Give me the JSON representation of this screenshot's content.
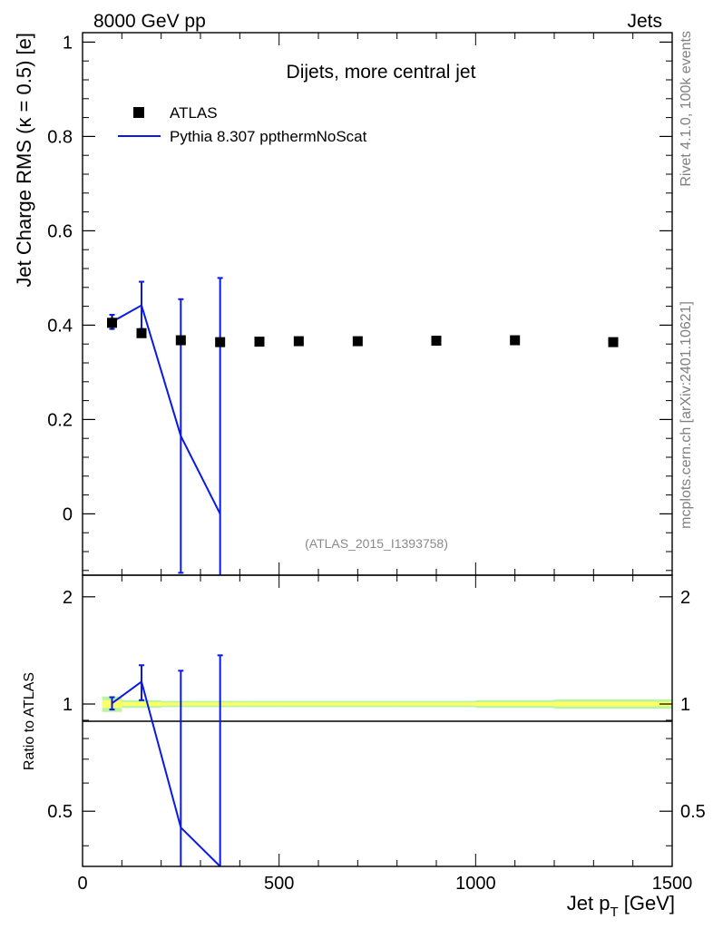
{
  "header": {
    "left": "8000 GeV pp",
    "right": "Jets"
  },
  "side": {
    "rivet": "Rivet 4.1.0,  100k events",
    "mcplots": "mcplots.cern.ch [arXiv:2401.10621]"
  },
  "colors": {
    "data": "#000000",
    "mc": "#0a19e6",
    "band_inner": "#ffff66",
    "band_outer": "#b8f5a0"
  },
  "chart_data": [
    {
      "type": "scatter",
      "title": "Dijets, more central jet",
      "xlabel": "Jet p",
      "xlabel_sub": "T",
      "xlabel_unit": " [GeV]",
      "ylabel": "Jet Charge RMS (κ = 0.5) [e]",
      "xlim": [
        0,
        1500
      ],
      "ylim": [
        -0.13,
        1.02
      ],
      "analysis_id": "(ATLAS_2015_I1393758)",
      "x_ticks": [
        0,
        500,
        1000,
        1500
      ],
      "x_tick_labels": [
        "0",
        "500",
        "1000",
        "1500"
      ],
      "y_ticks": [
        0,
        0.2,
        0.4,
        0.6,
        0.8,
        1
      ],
      "y_tick_labels": [
        "0",
        "0.2",
        "0.4",
        "0.6",
        "0.8",
        "1"
      ],
      "legend": {
        "data_label": "ATLAS",
        "mc_label": "Pythia 8.307 ppthermNoScat",
        "position": "top-left"
      },
      "series": [
        {
          "name": "ATLAS",
          "x": [
            75,
            150,
            250,
            350,
            450,
            550,
            700,
            900,
            1100,
            1350
          ],
          "y": [
            0.405,
            0.383,
            0.368,
            0.364,
            0.365,
            0.366,
            0.366,
            0.367,
            0.368,
            0.364
          ],
          "err": [
            0.015,
            0.006,
            0.004,
            0.004,
            0.004,
            0.004,
            0.004,
            0.004,
            0.005,
            0.006
          ],
          "xlow": [
            50,
            100,
            200,
            300,
            400,
            500,
            600,
            800,
            1000,
            1200
          ],
          "xhigh": [
            100,
            200,
            300,
            400,
            500,
            600,
            800,
            1000,
            1200,
            1500
          ]
        },
        {
          "name": "Pythia 8.307 ppthermNoScat",
          "x": [
            75,
            150,
            250,
            350
          ],
          "y": [
            0.407,
            0.442,
            0.165,
            0.0
          ],
          "err": [
            0.015,
            0.05,
            0.29,
            0.5
          ]
        }
      ]
    },
    {
      "type": "line",
      "ylabel": "Ratio to ATLAS",
      "xlim": [
        0,
        1500
      ],
      "ylim": [
        0.35,
        2.3
      ],
      "y_ticks": [
        0.5,
        1,
        2
      ],
      "y_tick_labels": [
        "0.5",
        "1",
        "2"
      ],
      "ratio_mc": {
        "x": [
          75,
          150,
          250,
          350
        ],
        "y": [
          1.005,
          1.155,
          0.45,
          0.0
        ],
        "err": [
          0.04,
          0.13,
          0.79,
          1.37
        ]
      },
      "band_half_width": [
        0.05,
        0.025,
        0.02,
        0.02,
        0.02,
        0.02,
        0.02,
        0.02,
        0.025,
        0.03
      ]
    }
  ]
}
